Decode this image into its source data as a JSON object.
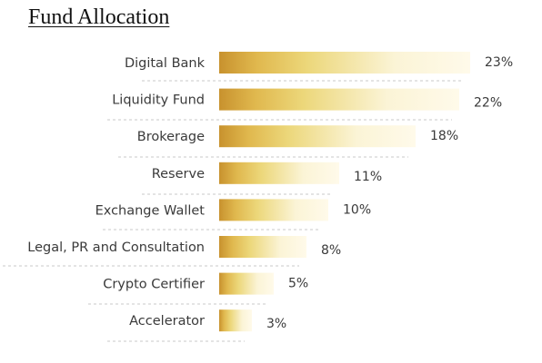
{
  "chart_data": {
    "type": "bar",
    "orientation": "horizontal",
    "title": "Fund Allocation",
    "categories": [
      "Digital Bank",
      "Liquidity Fund",
      "Brokerage",
      "Reserve",
      "Exchange Wallet",
      "Legal, PR and Consultation",
      "Crypto Certifier",
      "Accelerator"
    ],
    "values": [
      23,
      22,
      18,
      11,
      10,
      8,
      5,
      3
    ],
    "value_labels": [
      "23%",
      "22%",
      "18%",
      "11%",
      "10%",
      "8%",
      "5%",
      "3%"
    ],
    "unit": "%",
    "xlabel": "",
    "ylabel": "",
    "grid": false,
    "legend": "none",
    "colors": {
      "bar_dark": "#c8922e",
      "bar_mid": "#ecd77a",
      "bar_light": "#fbf4d6",
      "bar_end": "#fffaea",
      "text": "#3a3a3a"
    }
  }
}
